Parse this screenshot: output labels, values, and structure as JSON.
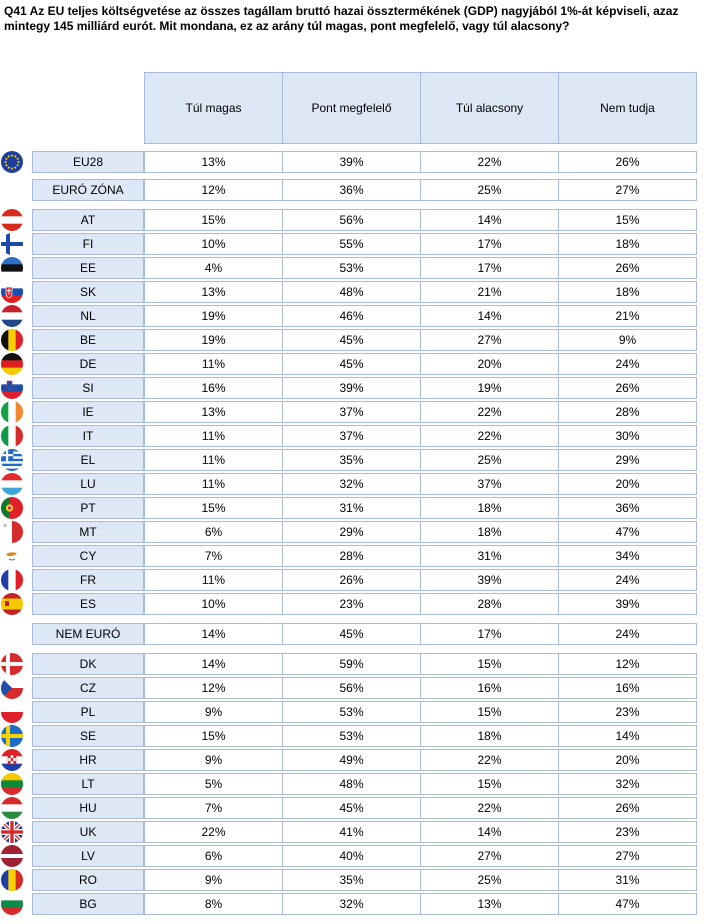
{
  "question": "Q41 Az EU teljes költségvetése az összes tagállam bruttó hazai össztermékének (GDP) nagyjából 1%-át képviseli, azaz mintegy 145 milliárd eurót. Mit mondana, ez az arány túl magas, pont megfelelő, vagy túl alacsony?",
  "columns": [
    "Túl magas",
    "Pont megfelelő",
    "Túl alacsony",
    "Nem tudja"
  ],
  "rows": [
    {
      "label": "EU28",
      "flag": "eu",
      "values": [
        "13%",
        "39%",
        "22%",
        "26%"
      ]
    },
    {
      "label": "EURÓ ZÓNA",
      "flag": "",
      "values": [
        "12%",
        "36%",
        "25%",
        "27%"
      ]
    },
    {
      "label": "AT",
      "flag": "at",
      "values": [
        "15%",
        "56%",
        "14%",
        "15%"
      ]
    },
    {
      "label": "FI",
      "flag": "fi",
      "values": [
        "10%",
        "55%",
        "17%",
        "18%"
      ]
    },
    {
      "label": "EE",
      "flag": "ee",
      "values": [
        "4%",
        "53%",
        "17%",
        "26%"
      ]
    },
    {
      "label": "SK",
      "flag": "sk",
      "values": [
        "13%",
        "48%",
        "21%",
        "18%"
      ]
    },
    {
      "label": "NL",
      "flag": "nl",
      "values": [
        "19%",
        "46%",
        "14%",
        "21%"
      ]
    },
    {
      "label": "BE",
      "flag": "be",
      "values": [
        "19%",
        "45%",
        "27%",
        "9%"
      ]
    },
    {
      "label": "DE",
      "flag": "de",
      "values": [
        "11%",
        "45%",
        "20%",
        "24%"
      ]
    },
    {
      "label": "SI",
      "flag": "si",
      "values": [
        "16%",
        "39%",
        "19%",
        "26%"
      ]
    },
    {
      "label": "IE",
      "flag": "ie",
      "values": [
        "13%",
        "37%",
        "22%",
        "28%"
      ]
    },
    {
      "label": "IT",
      "flag": "it",
      "values": [
        "11%",
        "37%",
        "22%",
        "30%"
      ]
    },
    {
      "label": "EL",
      "flag": "el",
      "values": [
        "11%",
        "35%",
        "25%",
        "29%"
      ]
    },
    {
      "label": "LU",
      "flag": "lu",
      "values": [
        "11%",
        "32%",
        "37%",
        "20%"
      ]
    },
    {
      "label": "PT",
      "flag": "pt",
      "values": [
        "15%",
        "31%",
        "18%",
        "36%"
      ]
    },
    {
      "label": "MT",
      "flag": "mt",
      "values": [
        "6%",
        "29%",
        "18%",
        "47%"
      ]
    },
    {
      "label": "CY",
      "flag": "cy",
      "values": [
        "7%",
        "28%",
        "31%",
        "34%"
      ]
    },
    {
      "label": "FR",
      "flag": "fr",
      "values": [
        "11%",
        "26%",
        "39%",
        "24%"
      ]
    },
    {
      "label": "ES",
      "flag": "es",
      "values": [
        "10%",
        "23%",
        "28%",
        "39%"
      ]
    },
    {
      "label": "NEM EURÓ",
      "flag": "",
      "values": [
        "14%",
        "45%",
        "17%",
        "24%"
      ]
    },
    {
      "label": "DK",
      "flag": "dk",
      "values": [
        "14%",
        "59%",
        "15%",
        "12%"
      ]
    },
    {
      "label": "CZ",
      "flag": "cz",
      "values": [
        "12%",
        "56%",
        "16%",
        "16%"
      ]
    },
    {
      "label": "PL",
      "flag": "pl",
      "values": [
        "9%",
        "53%",
        "15%",
        "23%"
      ]
    },
    {
      "label": "SE",
      "flag": "se",
      "values": [
        "15%",
        "53%",
        "18%",
        "14%"
      ]
    },
    {
      "label": "HR",
      "flag": "hr",
      "values": [
        "9%",
        "49%",
        "22%",
        "20%"
      ]
    },
    {
      "label": "LT",
      "flag": "lt",
      "values": [
        "5%",
        "48%",
        "15%",
        "32%"
      ]
    },
    {
      "label": "HU",
      "flag": "hu",
      "values": [
        "7%",
        "45%",
        "22%",
        "26%"
      ]
    },
    {
      "label": "UK",
      "flag": "uk",
      "values": [
        "22%",
        "41%",
        "14%",
        "23%"
      ]
    },
    {
      "label": "LV",
      "flag": "lv",
      "values": [
        "6%",
        "40%",
        "27%",
        "27%"
      ]
    },
    {
      "label": "RO",
      "flag": "ro",
      "values": [
        "9%",
        "35%",
        "25%",
        "31%"
      ]
    },
    {
      "label": "BG",
      "flag": "bg",
      "values": [
        "8%",
        "32%",
        "13%",
        "47%"
      ]
    }
  ]
}
